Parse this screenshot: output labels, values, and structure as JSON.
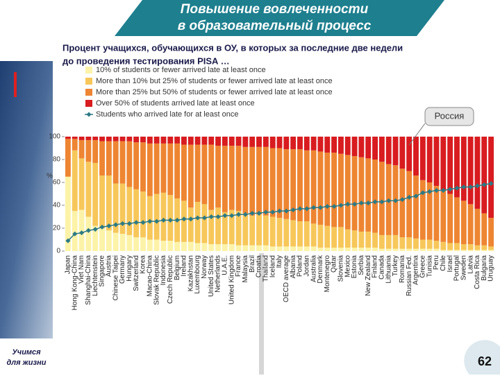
{
  "header": {
    "title": [
      "Повышение вовлеченности",
      "в образовательный процесс"
    ],
    "subtitle": [
      "Процент учащихся, обучающихся в ОУ, в которых  за последние две недели",
      "до проведения тестирования PISA …"
    ]
  },
  "footer": {
    "motto": [
      "Учимся",
      "для жизни"
    ],
    "page": "62"
  },
  "chart_data": {
    "type": "stacked_bar",
    "ylabel": "%",
    "annotation": "Россия",
    "annotation_index": 50,
    "ylim": [
      0,
      100
    ],
    "yticks": [
      0,
      20,
      40,
      60,
      80,
      100
    ],
    "categories": [
      "Japan",
      "Hong Kong-China",
      "Viet Nam",
      "Shanghai-China",
      "Liechtenstein",
      "Singapore",
      "Austria",
      "Chinese Taipei",
      "Germany",
      "Hungary",
      "Switzerland",
      "Korea",
      "Macao-China",
      "Slovak Republic",
      "Indonesia",
      "Czech Republic",
      "Belgium",
      "Ireland",
      "Kazakhstan",
      "Luxembourg",
      "Norway",
      "United States",
      "Netherlands",
      "U.A.E.",
      "United Kingdom",
      "France",
      "Malaysia",
      "Brazil",
      "Croatia",
      "Thailand",
      "Iceland",
      "Italy",
      "OECD average",
      "Albania",
      "Poland",
      "Jordan",
      "Australia",
      "Denmark",
      "Montenegro",
      "Qatar",
      "Slovenia",
      "Mexico",
      "Estonia",
      "Serbia",
      "New Zealand",
      "Finland",
      "Canada",
      "Lithuania",
      "Turkey",
      "Romania",
      "Russian Fed.",
      "Argentina",
      "Greece",
      "Tunisia",
      "Peru",
      "Chile",
      "Israel",
      "Portugal",
      "Sweden",
      "Latvia",
      "Costa Rica",
      "Bulgaria",
      "Uruguay"
    ],
    "series": [
      {
        "name": "10% of students or fewer arrived late at least once",
        "type": "bar",
        "color": "#fdf3a8",
        "values": [
          65,
          35,
          36,
          30,
          22,
          20,
          18,
          16,
          15,
          14,
          12,
          12,
          10,
          10,
          9,
          9,
          8,
          8,
          8,
          7,
          7,
          6,
          6,
          6,
          6,
          5,
          5,
          5,
          5,
          5,
          4,
          4,
          4,
          4,
          4,
          4,
          4,
          3,
          3,
          3,
          3,
          3,
          3,
          3,
          3,
          3,
          2,
          2,
          2,
          2,
          2,
          2,
          2,
          2,
          2,
          1,
          1,
          1,
          1,
          1,
          1,
          1,
          1
        ]
      },
      {
        "name": "More than 10% but 25% of students or fewer arrived late at least once",
        "type": "bar",
        "color": "#f7c75a",
        "values": [
          0,
          53,
          45,
          48,
          55,
          46,
          48,
          43,
          44,
          42,
          42,
          40,
          38,
          40,
          42,
          40,
          38,
          36,
          30,
          36,
          34,
          30,
          32,
          28,
          30,
          30,
          28,
          26,
          27,
          26,
          26,
          25,
          24,
          23,
          22,
          22,
          20,
          20,
          19,
          18,
          18,
          16,
          15,
          14,
          14,
          13,
          12,
          12,
          12,
          10,
          10,
          9,
          8,
          8,
          7,
          7,
          6,
          6,
          5,
          5,
          4,
          4,
          3
        ]
      },
      {
        "name": "More than 25% but 50% of students or fewer arrived late at least once",
        "type": "bar",
        "color": "#ee8532",
        "values": [
          33,
          10,
          16,
          19,
          20,
          30,
          30,
          37,
          37,
          40,
          41,
          43,
          46,
          44,
          43,
          45,
          48,
          49,
          55,
          50,
          52,
          57,
          54,
          58,
          56,
          57,
          58,
          60,
          59,
          60,
          60,
          61,
          61,
          62,
          63,
          62,
          64,
          64,
          64,
          65,
          64,
          65,
          65,
          65,
          64,
          64,
          64,
          62,
          61,
          60,
          58,
          55,
          52,
          50,
          48,
          45,
          43,
          40,
          38,
          35,
          32,
          28,
          25
        ]
      },
      {
        "name": "Over 50% of students arrived late at least once",
        "type": "bar",
        "color": "#d81c20",
        "values": [
          2,
          2,
          3,
          3,
          3,
          4,
          4,
          4,
          4,
          4,
          5,
          5,
          6,
          6,
          6,
          6,
          6,
          7,
          7,
          7,
          7,
          7,
          8,
          8,
          8,
          8,
          9,
          9,
          9,
          9,
          10,
          10,
          11,
          11,
          11,
          12,
          12,
          13,
          14,
          14,
          15,
          16,
          17,
          18,
          19,
          20,
          22,
          24,
          25,
          28,
          30,
          34,
          38,
          40,
          43,
          47,
          50,
          53,
          56,
          59,
          63,
          67,
          71
        ]
      },
      {
        "name": "Students who arrived late for at least once",
        "type": "line",
        "color": "#2b7a86",
        "values": [
          9,
          15,
          16,
          18,
          19,
          21,
          22,
          23,
          24,
          24,
          25,
          25,
          26,
          26,
          27,
          27,
          27,
          28,
          28,
          29,
          29,
          30,
          30,
          31,
          31,
          32,
          32,
          33,
          33,
          34,
          34,
          35,
          35,
          36,
          37,
          37,
          38,
          38,
          39,
          39,
          40,
          41,
          41,
          42,
          42,
          43,
          43,
          44,
          44,
          45,
          47,
          48,
          51,
          52,
          53,
          53,
          54,
          55,
          56,
          56,
          57,
          58,
          59
        ]
      }
    ]
  }
}
